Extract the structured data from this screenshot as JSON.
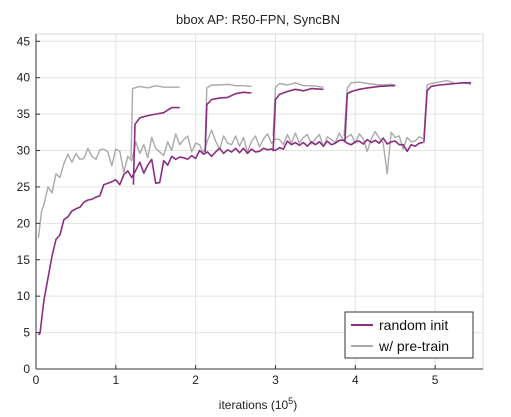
{
  "chart_data": {
    "type": "line",
    "title": "bbox AP: R50-FPN, SyncBN",
    "xlabel": "iterations (10",
    "xlabel_sup": "5",
    "xlabel_suffix": ")",
    "xlim": [
      0,
      5.6
    ],
    "ylim": [
      0,
      46
    ],
    "x_ticks": [
      0,
      1,
      2,
      3,
      4,
      5
    ],
    "y_ticks": [
      0,
      5,
      10,
      15,
      20,
      25,
      30,
      35,
      40,
      45
    ],
    "grid": true,
    "legend": "bottom-right",
    "series": [
      {
        "name": "random init",
        "color": "#8b2e82",
        "segments": [
          [
            [
              0.03,
              4.7
            ],
            [
              0.05,
              4.9
            ],
            [
              0.1,
              9.5
            ],
            [
              0.15,
              12.5
            ],
            [
              0.2,
              15.5
            ],
            [
              0.25,
              17.8
            ],
            [
              0.3,
              18.4
            ],
            [
              0.35,
              20.5
            ],
            [
              0.4,
              20.9
            ],
            [
              0.45,
              21.7
            ],
            [
              0.5,
              22.0
            ],
            [
              0.55,
              22.2
            ],
            [
              0.6,
              22.9
            ],
            [
              0.65,
              23.2
            ],
            [
              0.7,
              23.3
            ],
            [
              0.75,
              23.6
            ],
            [
              0.8,
              23.8
            ],
            [
              0.85,
              25.3
            ],
            [
              0.9,
              25.5
            ],
            [
              0.95,
              25.7
            ],
            [
              1.0,
              26.0
            ],
            [
              1.05,
              25.3
            ],
            [
              1.1,
              26.7
            ],
            [
              1.15,
              27.2
            ],
            [
              1.2,
              26.3
            ],
            [
              1.25,
              27.3
            ],
            [
              1.3,
              28.4
            ],
            [
              1.35,
              26.9
            ],
            [
              1.4,
              28.0
            ],
            [
              1.45,
              28.8
            ],
            [
              1.5,
              25.5
            ],
            [
              1.55,
              25.6
            ],
            [
              1.6,
              28.6
            ],
            [
              1.65,
              28.0
            ],
            [
              1.7,
              29.2
            ],
            [
              1.75,
              28.8
            ],
            [
              1.8,
              29.1
            ],
            [
              1.85,
              29.0
            ],
            [
              1.9,
              28.8
            ],
            [
              1.95,
              29.3
            ],
            [
              2.0,
              28.9
            ],
            [
              2.05,
              30.0
            ],
            [
              2.1,
              29.5
            ],
            [
              2.15,
              29.8
            ],
            [
              2.2,
              29.2
            ],
            [
              2.25,
              29.8
            ],
            [
              2.3,
              30.3
            ],
            [
              2.35,
              29.6
            ],
            [
              2.4,
              30.1
            ],
            [
              2.45,
              29.8
            ],
            [
              2.5,
              30.3
            ],
            [
              2.55,
              29.7
            ],
            [
              2.6,
              30.3
            ],
            [
              2.65,
              29.6
            ],
            [
              2.7,
              30.2
            ],
            [
              2.75,
              29.8
            ],
            [
              2.8,
              29.9
            ],
            [
              2.85,
              30.3
            ],
            [
              2.9,
              30.1
            ],
            [
              2.95,
              30.2
            ],
            [
              3.0,
              30.0
            ],
            [
              3.05,
              30.4
            ],
            [
              3.1,
              30.2
            ],
            [
              3.15,
              31.3
            ],
            [
              3.2,
              30.8
            ],
            [
              3.25,
              31.1
            ],
            [
              3.3,
              30.7
            ],
            [
              3.35,
              31.1
            ],
            [
              3.4,
              30.6
            ],
            [
              3.45,
              31.2
            ],
            [
              3.5,
              30.8
            ],
            [
              3.55,
              31.2
            ],
            [
              3.6,
              30.6
            ],
            [
              3.65,
              31.3
            ],
            [
              3.7,
              30.8
            ],
            [
              3.75,
              31.0
            ],
            [
              3.8,
              31.4
            ],
            [
              3.85,
              31.4
            ],
            [
              3.9,
              31.0
            ],
            [
              3.95,
              30.8
            ],
            [
              4.0,
              31.2
            ],
            [
              4.05,
              31.3
            ],
            [
              4.1,
              30.9
            ],
            [
              4.15,
              31.5
            ],
            [
              4.2,
              31.1
            ],
            [
              4.25,
              31.4
            ],
            [
              4.3,
              31.0
            ],
            [
              4.35,
              31.7
            ],
            [
              4.4,
              30.9
            ],
            [
              4.45,
              31.2
            ],
            [
              4.5,
              31.3
            ],
            [
              4.55,
              30.8
            ],
            [
              4.6,
              30.8
            ],
            [
              4.65,
              29.9
            ],
            [
              4.7,
              30.8
            ],
            [
              4.75,
              30.6
            ],
            [
              4.8,
              31.0
            ],
            [
              4.85,
              31.1
            ]
          ],
          [
            [
              1.22,
              25.3
            ],
            [
              1.24,
              33.6
            ],
            [
              1.3,
              34.5
            ],
            [
              1.4,
              34.8
            ],
            [
              1.5,
              35.0
            ],
            [
              1.6,
              35.2
            ],
            [
              1.7,
              35.9
            ],
            [
              1.8,
              35.9
            ]
          ],
          [
            [
              2.12,
              29.8
            ],
            [
              2.14,
              36.3
            ],
            [
              2.2,
              37.0
            ],
            [
              2.3,
              37.2
            ],
            [
              2.4,
              37.3
            ],
            [
              2.5,
              37.8
            ],
            [
              2.6,
              38.0
            ],
            [
              2.7,
              37.9
            ]
          ],
          [
            [
              2.97,
              29.9
            ],
            [
              3.0,
              37.0
            ],
            [
              3.05,
              37.7
            ],
            [
              3.15,
              38.1
            ],
            [
              3.25,
              38.4
            ],
            [
              3.35,
              38.2
            ],
            [
              3.45,
              38.5
            ],
            [
              3.6,
              38.4
            ]
          ],
          [
            [
              3.87,
              31.3
            ],
            [
              3.9,
              37.8
            ],
            [
              3.95,
              38.1
            ],
            [
              4.05,
              38.4
            ],
            [
              4.15,
              38.6
            ],
            [
              4.3,
              38.8
            ],
            [
              4.45,
              38.9
            ],
            [
              4.5,
              38.9
            ]
          ],
          [
            [
              4.86,
              31.1
            ],
            [
              4.9,
              38.2
            ],
            [
              4.95,
              38.8
            ],
            [
              5.05,
              39.0
            ],
            [
              5.15,
              39.1
            ],
            [
              5.25,
              39.2
            ],
            [
              5.35,
              39.3
            ],
            [
              5.45,
              39.3
            ]
          ]
        ]
      },
      {
        "name": "w/ pre-train",
        "color": "#aaaaaa",
        "segments": [
          [
            [
              0.03,
              18.0
            ],
            [
              0.07,
              21.7
            ],
            [
              0.1,
              22.6
            ],
            [
              0.15,
              25.0
            ],
            [
              0.2,
              24.2
            ],
            [
              0.25,
              26.8
            ],
            [
              0.3,
              26.3
            ],
            [
              0.35,
              28.2
            ],
            [
              0.4,
              29.5
            ],
            [
              0.45,
              28.4
            ],
            [
              0.5,
              29.6
            ],
            [
              0.55,
              28.8
            ],
            [
              0.6,
              28.9
            ],
            [
              0.65,
              30.3
            ],
            [
              0.7,
              29.2
            ],
            [
              0.75,
              28.8
            ],
            [
              0.8,
              30.1
            ],
            [
              0.85,
              30.2
            ],
            [
              0.9,
              29.8
            ],
            [
              0.95,
              27.9
            ],
            [
              1.0,
              30.2
            ],
            [
              1.05,
              29.9
            ],
            [
              1.1,
              27.0
            ],
            [
              1.15,
              29.2
            ],
            [
              1.2,
              28.6
            ],
            [
              1.25,
              31.2
            ],
            [
              1.3,
              29.6
            ],
            [
              1.35,
              30.8
            ],
            [
              1.4,
              29.0
            ],
            [
              1.45,
              31.8
            ],
            [
              1.5,
              30.3
            ],
            [
              1.55,
              29.8
            ],
            [
              1.6,
              29.3
            ],
            [
              1.65,
              31.2
            ],
            [
              1.7,
              30.0
            ],
            [
              1.75,
              32.3
            ],
            [
              1.8,
              30.8
            ],
            [
              1.85,
              31.5
            ],
            [
              1.9,
              32.0
            ],
            [
              1.95,
              29.8
            ],
            [
              2.0,
              31.0
            ],
            [
              2.05,
              30.8
            ],
            [
              2.1,
              29.6
            ],
            [
              2.15,
              31.4
            ],
            [
              2.2,
              32.8
            ],
            [
              2.25,
              31.3
            ],
            [
              2.3,
              30.2
            ],
            [
              2.35,
              32.0
            ],
            [
              2.4,
              31.0
            ],
            [
              2.45,
              30.8
            ],
            [
              2.5,
              32.0
            ],
            [
              2.55,
              30.6
            ],
            [
              2.6,
              31.8
            ],
            [
              2.65,
              29.8
            ],
            [
              2.7,
              31.3
            ],
            [
              2.75,
              32.0
            ],
            [
              2.8,
              30.5
            ],
            [
              2.85,
              31.6
            ],
            [
              2.9,
              32.3
            ],
            [
              2.95,
              31.0
            ],
            [
              3.0,
              31.6
            ],
            [
              3.05,
              31.5
            ],
            [
              3.1,
              30.8
            ],
            [
              3.15,
              32.2
            ],
            [
              3.2,
              31.0
            ],
            [
              3.25,
              32.4
            ],
            [
              3.3,
              31.0
            ],
            [
              3.35,
              31.8
            ],
            [
              3.4,
              32.2
            ],
            [
              3.45,
              30.9
            ],
            [
              3.5,
              31.6
            ],
            [
              3.55,
              32.2
            ],
            [
              3.6,
              30.5
            ],
            [
              3.65,
              31.9
            ],
            [
              3.7,
              31.5
            ],
            [
              3.75,
              31.1
            ],
            [
              3.8,
              32.4
            ],
            [
              3.85,
              31.4
            ],
            [
              3.9,
              31.9
            ],
            [
              3.95,
              32.2
            ],
            [
              4.0,
              31.0
            ],
            [
              4.05,
              32.3
            ],
            [
              4.1,
              31.6
            ],
            [
              4.15,
              29.9
            ],
            [
              4.2,
              31.6
            ],
            [
              4.25,
              32.6
            ],
            [
              4.3,
              31.7
            ],
            [
              4.35,
              31.0
            ],
            [
              4.4,
              26.8
            ],
            [
              4.45,
              32.5
            ],
            [
              4.5,
              31.8
            ],
            [
              4.55,
              32.0
            ],
            [
              4.6,
              30.2
            ],
            [
              4.65,
              31.8
            ],
            [
              4.7,
              31.2
            ],
            [
              4.75,
              31.3
            ],
            [
              4.8,
              31.9
            ],
            [
              4.85,
              31.6
            ]
          ],
          [
            [
              1.19,
              29.0
            ],
            [
              1.21,
              38.5
            ],
            [
              1.3,
              38.8
            ],
            [
              1.4,
              38.6
            ],
            [
              1.5,
              38.9
            ],
            [
              1.6,
              38.7
            ],
            [
              1.7,
              38.7
            ],
            [
              1.8,
              38.7
            ]
          ],
          [
            [
              2.12,
              31.3
            ],
            [
              2.14,
              38.6
            ],
            [
              2.2,
              39.0
            ],
            [
              2.3,
              39.0
            ],
            [
              2.4,
              39.1
            ],
            [
              2.5,
              38.9
            ],
            [
              2.6,
              38.9
            ],
            [
              2.7,
              38.8
            ]
          ],
          [
            [
              2.97,
              32.0
            ],
            [
              3.0,
              38.7
            ],
            [
              3.05,
              39.2
            ],
            [
              3.15,
              39.0
            ],
            [
              3.25,
              39.3
            ],
            [
              3.35,
              38.9
            ],
            [
              3.45,
              38.9
            ],
            [
              3.6,
              38.7
            ]
          ],
          [
            [
              3.86,
              32.0
            ],
            [
              3.9,
              38.6
            ],
            [
              3.95,
              39.3
            ],
            [
              4.05,
              39.4
            ],
            [
              4.15,
              39.2
            ],
            [
              4.3,
              39.0
            ],
            [
              4.45,
              39.1
            ],
            [
              4.5,
              39.0
            ]
          ],
          [
            [
              4.86,
              32.0
            ],
            [
              4.9,
              39.0
            ],
            [
              4.95,
              39.2
            ],
            [
              5.05,
              39.4
            ],
            [
              5.15,
              39.6
            ],
            [
              5.25,
              39.2
            ],
            [
              5.35,
              39.3
            ],
            [
              5.45,
              39.1
            ]
          ]
        ]
      }
    ]
  }
}
